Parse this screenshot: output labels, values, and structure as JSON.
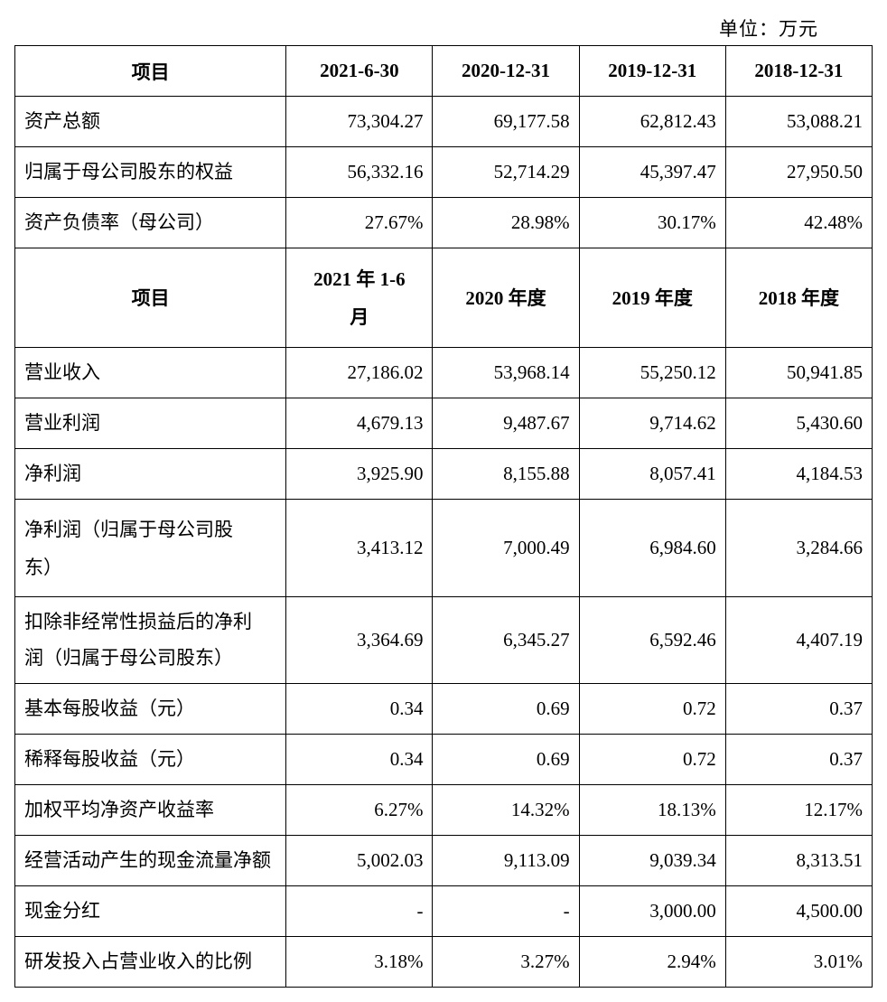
{
  "unit_label": "单位：万元",
  "table": {
    "type": "table",
    "border_color": "#000000",
    "background_color": "#ffffff",
    "text_color": "#000000",
    "font_size_pt": 16,
    "header1": {
      "c0": "项目",
      "c1": "2021-6-30",
      "c2": "2020-12-31",
      "c3": "2019-12-31",
      "c4": "2018-12-31"
    },
    "section1": [
      {
        "label": "资产总额",
        "v": [
          "73,304.27",
          "69,177.58",
          "62,812.43",
          "53,088.21"
        ]
      },
      {
        "label": "归属于母公司股东的权益",
        "v": [
          "56,332.16",
          "52,714.29",
          "45,397.47",
          "27,950.50"
        ]
      },
      {
        "label": "资产负债率（母公司）",
        "v": [
          "27.67%",
          "28.98%",
          "30.17%",
          "42.48%"
        ]
      }
    ],
    "header2": {
      "c0": "项目",
      "c1_line1": "2021 年 1-6",
      "c1_line2": "月",
      "c2": "2020 年度",
      "c3": "2019 年度",
      "c4": "2018 年度"
    },
    "section2": [
      {
        "label": "营业收入",
        "tall": false,
        "v": [
          "27,186.02",
          "53,968.14",
          "55,250.12",
          "50,941.85"
        ]
      },
      {
        "label": "营业利润",
        "tall": false,
        "v": [
          "4,679.13",
          "9,487.67",
          "9,714.62",
          "5,430.60"
        ]
      },
      {
        "label": "净利润",
        "tall": false,
        "v": [
          "3,925.90",
          "8,155.88",
          "8,057.41",
          "4,184.53"
        ]
      },
      {
        "label_line1": "净利润（归属于母公司股",
        "label_line2": "东）",
        "tall": true,
        "v": [
          "3,413.12",
          "7,000.49",
          "6,984.60",
          "3,284.66"
        ]
      },
      {
        "label_line1": "扣除非经常性损益后的净利",
        "label_line2": "润（归属于母公司股东）",
        "tall": "t2",
        "v": [
          "3,364.69",
          "6,345.27",
          "6,592.46",
          "4,407.19"
        ]
      },
      {
        "label": "基本每股收益（元）",
        "tall": false,
        "v": [
          "0.34",
          "0.69",
          "0.72",
          "0.37"
        ]
      },
      {
        "label": "稀释每股收益（元）",
        "tall": false,
        "v": [
          "0.34",
          "0.69",
          "0.72",
          "0.37"
        ]
      },
      {
        "label": "加权平均净资产收益率",
        "tall": false,
        "v": [
          "6.27%",
          "14.32%",
          "18.13%",
          "12.17%"
        ]
      },
      {
        "label": "经营活动产生的现金流量净额",
        "tall": false,
        "v": [
          "5,002.03",
          "9,113.09",
          "9,039.34",
          "8,313.51"
        ]
      },
      {
        "label": "现金分红",
        "tall": false,
        "v": [
          "-",
          "-",
          "3,000.00",
          "4,500.00"
        ]
      },
      {
        "label": "研发投入占营业收入的比例",
        "tall": false,
        "v": [
          "3.18%",
          "3.27%",
          "2.94%",
          "3.01%"
        ]
      }
    ]
  }
}
